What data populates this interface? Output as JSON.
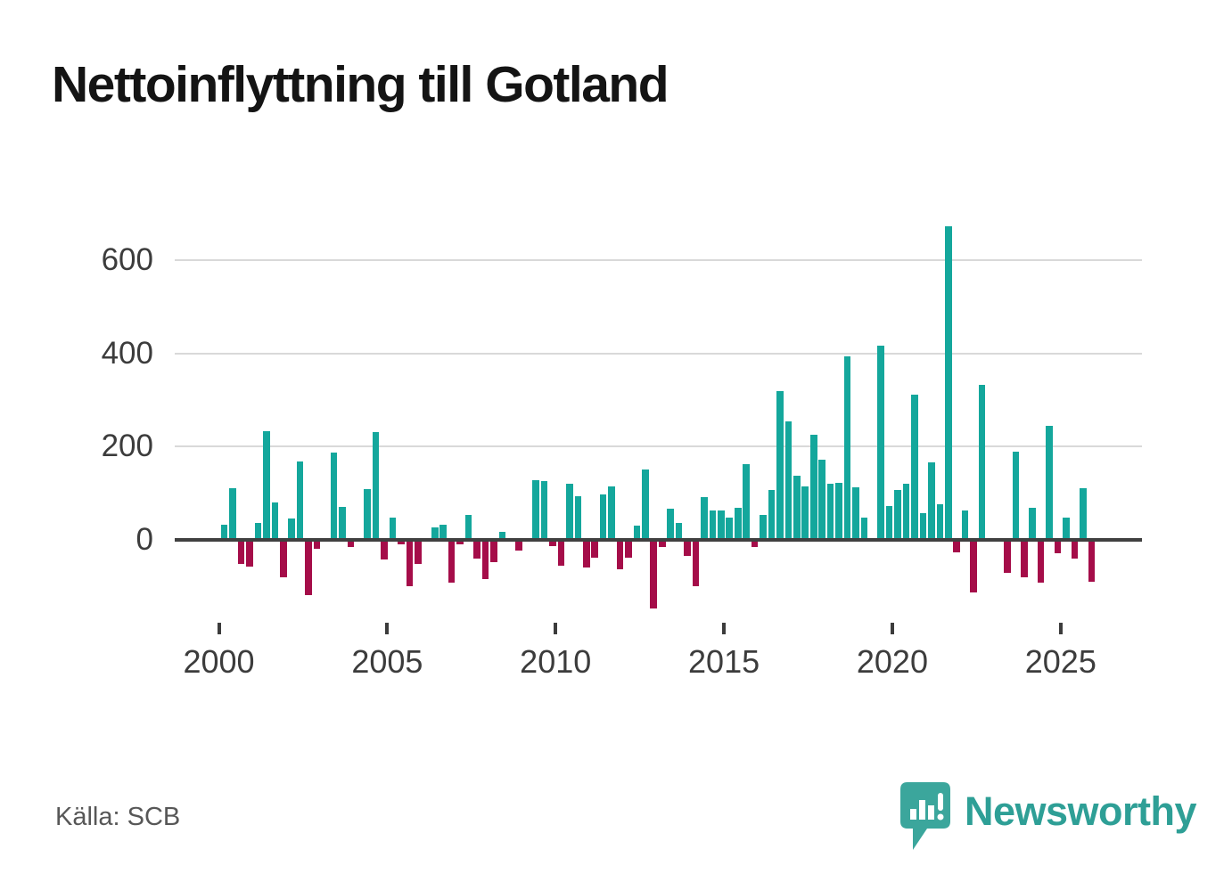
{
  "title": "Nettoinflyttning till Gotland",
  "source": "Källa: SCB",
  "branding": {
    "name": "Newsworthy",
    "icon": "bar-chart-pin-icon"
  },
  "colors": {
    "positive": "#14a79c",
    "negative": "#a50d49",
    "grid": "#d9d9d9",
    "zero_line": "#404040",
    "title_text": "#141414",
    "axis_text": "#3c3c3c",
    "source_text": "#575757",
    "brand": "#2e9f96",
    "brand_icon": "#3ba69c"
  },
  "chart_data": {
    "type": "bar",
    "title": "Nettoinflyttning till Gotland",
    "x_axis": {
      "start": "2000Q1",
      "end": "2025Q4",
      "frequency": "quarterly",
      "tick_labels": [
        "2000",
        "2005",
        "2010",
        "2015",
        "2020",
        "2025"
      ],
      "tick_years": [
        2000,
        2005,
        2010,
        2015,
        2020,
        2025
      ]
    },
    "y_axis": {
      "ticks": [
        0,
        200,
        400,
        600
      ],
      "tick_labels": [
        "0",
        "200",
        "400",
        "600"
      ],
      "implied_range": [
        -160,
        700
      ],
      "gridlines": true
    },
    "legend": "none",
    "series": [
      {
        "name": "Nettoinflyttning",
        "values": [
          32,
          110,
          -52,
          -58,
          37,
          234,
          80,
          -80,
          45,
          168,
          -118,
          -20,
          0,
          187,
          70,
          -15,
          0,
          109,
          232,
          -42,
          48,
          -10,
          -100,
          -52,
          0,
          26,
          32,
          -91,
          -10,
          54,
          -40,
          -85,
          -48,
          18,
          0,
          -22,
          0,
          129,
          127,
          -13,
          -56,
          121,
          94,
          -59,
          -38,
          98,
          115,
          -64,
          -38,
          31,
          152,
          -148,
          -16,
          66,
          36,
          -34,
          -99,
          92,
          63,
          63,
          48,
          68,
          162,
          -15,
          53,
          108,
          320,
          255,
          137,
          115,
          225,
          173,
          121,
          122,
          394,
          113,
          47,
          0,
          417,
          73,
          108,
          121,
          311,
          58,
          167,
          77,
          673,
          -26,
          64,
          -112,
          333,
          0,
          0,
          -71,
          190,
          -81,
          68,
          -91,
          244,
          -29,
          48,
          -41,
          110,
          -89
        ]
      }
    ]
  }
}
